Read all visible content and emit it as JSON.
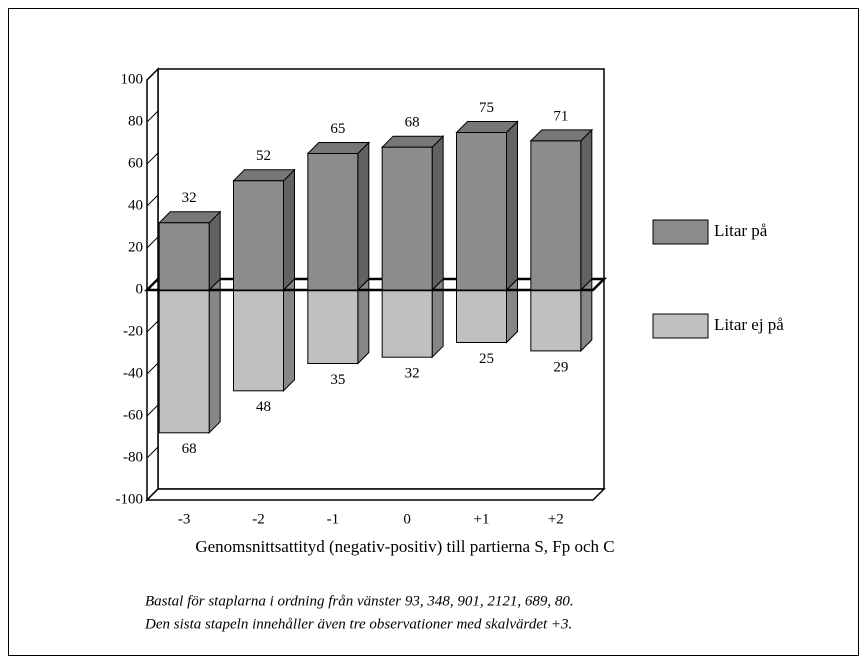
{
  "chart_data": {
    "type": "bar3d",
    "xlabel": "Genomsnittsattityd (negativ-positiv) till partierna S, Fp och C",
    "categories": [
      "-3",
      "-2",
      "-1",
      "0",
      "+1",
      "+2"
    ],
    "series": [
      {
        "name": "Litar på",
        "color": "#8c8c8c",
        "values": [
          32,
          52,
          65,
          68,
          75,
          71
        ]
      },
      {
        "name": "Litar ej på",
        "color": "#c0c0c0",
        "values": [
          -68,
          -48,
          -35,
          -32,
          -25,
          -29
        ],
        "value_labels": [
          "68",
          "48",
          "35",
          "32",
          "25",
          "29"
        ]
      }
    ],
    "ylim": [
      -100,
      100
    ],
    "yticks": [
      -100,
      -80,
      -60,
      -40,
      -20,
      0,
      20,
      40,
      60,
      80,
      100
    ],
    "legend": "right",
    "notes": [
      "Bastal för staplarna i ordning från vänster 93, 348, 901, 2121, 689, 80.",
      "Den sista stapeln innehåller även tre observationer med skalvärdet +3."
    ]
  }
}
